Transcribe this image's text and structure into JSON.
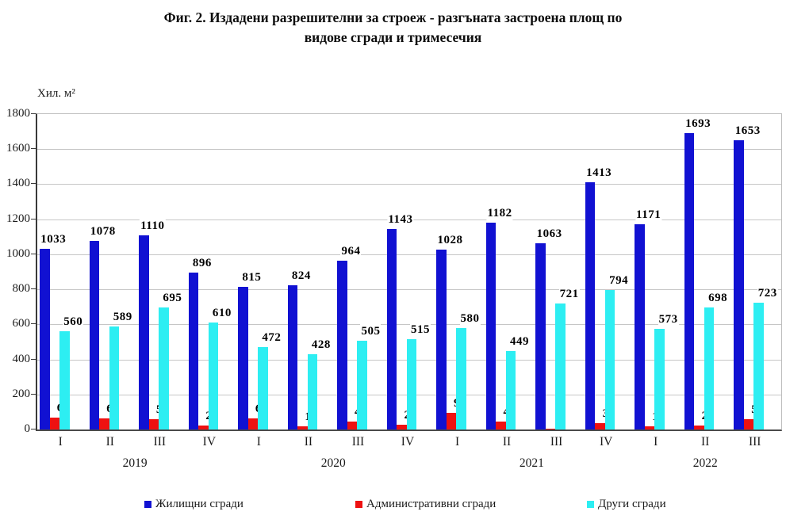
{
  "title": {
    "line1": "Фиг. 2. Издадени разрешителни за строеж - разгъната застроена площ по",
    "line2": "видове сгради и тримесечия"
  },
  "y_axis": {
    "unit_label": "Хил. м²",
    "min": 0,
    "max": 1800,
    "step": 200,
    "tick_labels": [
      "0",
      "200",
      "400",
      "600",
      "800",
      "1000",
      "1200",
      "1400",
      "1600",
      "1800"
    ]
  },
  "x_axis": {
    "quarters": [
      "I",
      "II",
      "III",
      "IV",
      "I",
      "II",
      "III",
      "IV",
      "I",
      "II",
      "III",
      "IV",
      "I",
      "II",
      "III"
    ],
    "years": [
      {
        "label": "2019",
        "start": 0,
        "count": 4
      },
      {
        "label": "2020",
        "start": 4,
        "count": 4
      },
      {
        "label": "2021",
        "start": 8,
        "count": 4
      },
      {
        "label": "2022",
        "start": 12,
        "count": 3
      }
    ]
  },
  "chart_data": {
    "type": "bar",
    "title": "Фиг. 2. Издадени разрешителни за строеж - разгъната застроена площ по видове сгради и тримесечия",
    "ylabel": "Хил. м²",
    "ylim": [
      0,
      1800
    ],
    "grid": true,
    "legend_position": "bottom",
    "categories": [
      "2019 I",
      "2019 II",
      "2019 III",
      "2019 IV",
      "2020 I",
      "2020 II",
      "2020 III",
      "2020 IV",
      "2021 I",
      "2021 II",
      "2021 III",
      "2021 IV",
      "2022 I",
      "2022 II",
      "2022 III"
    ],
    "series": [
      {
        "name": "Жилищни сгради",
        "color": "#1111d2",
        "values": [
          1033,
          1078,
          1110,
          896,
          815,
          824,
          964,
          1143,
          1028,
          1182,
          1063,
          1413,
          1171,
          1693,
          1653
        ]
      },
      {
        "name": "Административни сгради",
        "color": "#ee1111",
        "values": [
          67,
          62,
          58,
          21,
          64,
          18,
          47,
          28,
          93,
          45,
          6,
          37,
          17,
          23,
          57
        ]
      },
      {
        "name": "Други сгради",
        "color": "#2deef2",
        "values": [
          560,
          589,
          695,
          610,
          472,
          428,
          505,
          515,
          580,
          449,
          721,
          794,
          573,
          698,
          723
        ]
      }
    ]
  },
  "colors": {
    "gridline": "#c6c6c6",
    "axis": "#3a3a3a",
    "label_text": "#000000"
  }
}
